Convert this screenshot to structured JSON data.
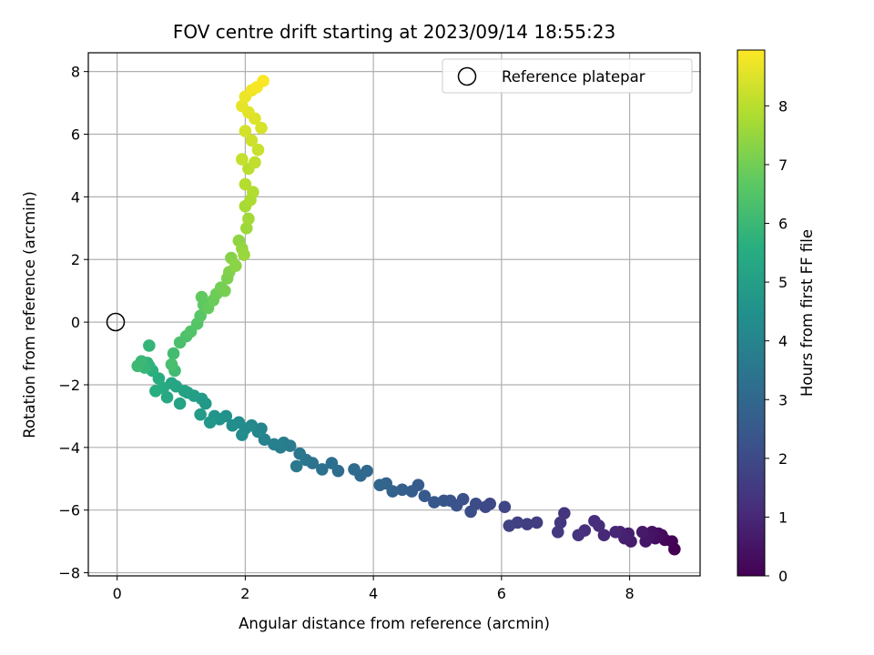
{
  "chart_data": {
    "type": "scatter",
    "title": "FOV centre drift starting at 2023/09/14 18:55:23",
    "xlabel": "Angular distance from reference (arcmin)",
    "ylabel": "Rotation from reference (arcmin)",
    "colorbar_label": "Hours from first FF file",
    "colormap": "viridis",
    "xlim": [
      -0.45,
      9.1
    ],
    "ylim": [
      -8.1,
      8.6
    ],
    "clim": [
      0,
      8.95
    ],
    "x_ticks": [
      "0",
      "2",
      "4",
      "6",
      "8"
    ],
    "y_ticks": [
      "−8",
      "−6",
      "−4",
      "−2",
      "0",
      "2",
      "4",
      "6",
      "8"
    ],
    "colorbar_ticks": [
      "0",
      "1",
      "2",
      "3",
      "4",
      "5",
      "6",
      "7",
      "8"
    ],
    "grid": true,
    "legend": {
      "position": "top-right",
      "entries": [
        {
          "label": "Reference platepar",
          "marker": "hollow-circle"
        }
      ]
    },
    "reference_point": {
      "x": 0,
      "y": 0
    },
    "series": [
      {
        "points": [
          [
            8.7,
            -7.25
          ],
          [
            8.66,
            -7.0
          ],
          [
            8.55,
            -6.95
          ],
          [
            8.5,
            -6.8
          ],
          [
            8.45,
            -6.75
          ],
          [
            8.4,
            -6.9
          ],
          [
            8.35,
            -6.7
          ],
          [
            8.3,
            -6.85
          ],
          [
            8.25,
            -7.0
          ],
          [
            8.2,
            -6.7
          ],
          [
            8.02,
            -7.0
          ],
          [
            7.98,
            -6.75
          ],
          [
            7.92,
            -6.9
          ],
          [
            7.85,
            -6.7
          ],
          [
            7.78,
            -6.7
          ],
          [
            7.6,
            -6.8
          ],
          [
            7.52,
            -6.5
          ],
          [
            7.45,
            -6.35
          ],
          [
            7.3,
            -6.65
          ],
          [
            7.2,
            -6.8
          ],
          [
            6.98,
            -6.1
          ],
          [
            6.92,
            -6.4
          ],
          [
            6.88,
            -6.7
          ],
          [
            6.55,
            -6.4
          ],
          [
            6.4,
            -6.45
          ],
          [
            6.25,
            -6.4
          ],
          [
            6.12,
            -6.5
          ],
          [
            6.05,
            -5.9
          ],
          [
            5.82,
            -5.8
          ],
          [
            5.75,
            -5.9
          ],
          [
            5.6,
            -5.8
          ],
          [
            5.52,
            -6.05
          ],
          [
            5.4,
            -5.65
          ],
          [
            5.3,
            -5.85
          ],
          [
            5.2,
            -5.7
          ],
          [
            5.1,
            -5.7
          ],
          [
            4.95,
            -5.75
          ],
          [
            4.8,
            -5.55
          ],
          [
            4.7,
            -5.2
          ],
          [
            4.6,
            -5.4
          ],
          [
            4.45,
            -5.35
          ],
          [
            4.3,
            -5.4
          ],
          [
            4.2,
            -5.15
          ],
          [
            4.1,
            -5.2
          ],
          [
            3.9,
            -4.75
          ],
          [
            3.8,
            -4.9
          ],
          [
            3.7,
            -4.7
          ],
          [
            3.45,
            -4.75
          ],
          [
            3.35,
            -4.5
          ],
          [
            3.2,
            -4.7
          ],
          [
            3.05,
            -4.5
          ],
          [
            2.95,
            -4.4
          ],
          [
            2.85,
            -4.2
          ],
          [
            2.8,
            -4.6
          ],
          [
            2.7,
            -3.95
          ],
          [
            2.6,
            -3.85
          ],
          [
            2.55,
            -4.0
          ],
          [
            2.45,
            -3.9
          ],
          [
            2.3,
            -3.75
          ],
          [
            2.25,
            -3.4
          ],
          [
            2.2,
            -3.5
          ],
          [
            2.1,
            -3.3
          ],
          [
            2.0,
            -3.4
          ],
          [
            1.95,
            -3.6
          ],
          [
            1.9,
            -3.2
          ],
          [
            1.8,
            -3.3
          ],
          [
            1.7,
            -3.0
          ],
          [
            1.6,
            -3.1
          ],
          [
            1.52,
            -3.0
          ],
          [
            1.45,
            -3.2
          ],
          [
            1.38,
            -2.6
          ],
          [
            1.32,
            -2.45
          ],
          [
            1.3,
            -2.95
          ],
          [
            1.2,
            -2.35
          ],
          [
            1.1,
            -2.25
          ],
          [
            1.05,
            -2.2
          ],
          [
            0.98,
            -2.6
          ],
          [
            0.92,
            -2.05
          ],
          [
            0.85,
            -1.95
          ],
          [
            0.78,
            -2.4
          ],
          [
            0.72,
            -2.1
          ],
          [
            0.65,
            -1.8
          ],
          [
            0.6,
            -2.2
          ],
          [
            0.55,
            -1.55
          ],
          [
            0.5,
            -1.4
          ],
          [
            0.47,
            -1.3
          ],
          [
            0.5,
            -0.75
          ],
          [
            0.43,
            -1.45
          ],
          [
            0.38,
            -1.25
          ],
          [
            0.32,
            -1.4
          ],
          [
            0.9,
            -1.55
          ],
          [
            0.88,
            -1.0
          ],
          [
            0.85,
            -1.35
          ],
          [
            0.98,
            -0.65
          ],
          [
            1.08,
            -0.45
          ],
          [
            1.15,
            -0.3
          ],
          [
            1.25,
            -0.05
          ],
          [
            1.3,
            0.2
          ],
          [
            1.35,
            0.55
          ],
          [
            1.32,
            0.8
          ],
          [
            1.42,
            0.45
          ],
          [
            1.5,
            0.7
          ],
          [
            1.55,
            0.9
          ],
          [
            1.62,
            1.1
          ],
          [
            1.68,
            1.0
          ],
          [
            1.72,
            1.4
          ],
          [
            1.75,
            1.6
          ],
          [
            1.78,
            2.05
          ],
          [
            1.85,
            1.8
          ],
          [
            1.9,
            2.6
          ],
          [
            1.95,
            2.35
          ],
          [
            1.98,
            2.15
          ],
          [
            2.02,
            3.0
          ],
          [
            2.05,
            3.3
          ],
          [
            2.0,
            3.7
          ],
          [
            2.08,
            3.9
          ],
          [
            2.12,
            4.15
          ],
          [
            2.0,
            4.4
          ],
          [
            2.05,
            4.9
          ],
          [
            2.15,
            5.1
          ],
          [
            1.95,
            5.2
          ],
          [
            2.2,
            5.5
          ],
          [
            2.1,
            5.8
          ],
          [
            2.0,
            6.1
          ],
          [
            2.25,
            6.2
          ],
          [
            2.15,
            6.5
          ],
          [
            2.05,
            6.7
          ],
          [
            1.95,
            6.9
          ],
          [
            2.0,
            7.2
          ],
          [
            2.1,
            7.4
          ],
          [
            2.18,
            7.5
          ],
          [
            2.28,
            7.7
          ]
        ]
      }
    ]
  }
}
